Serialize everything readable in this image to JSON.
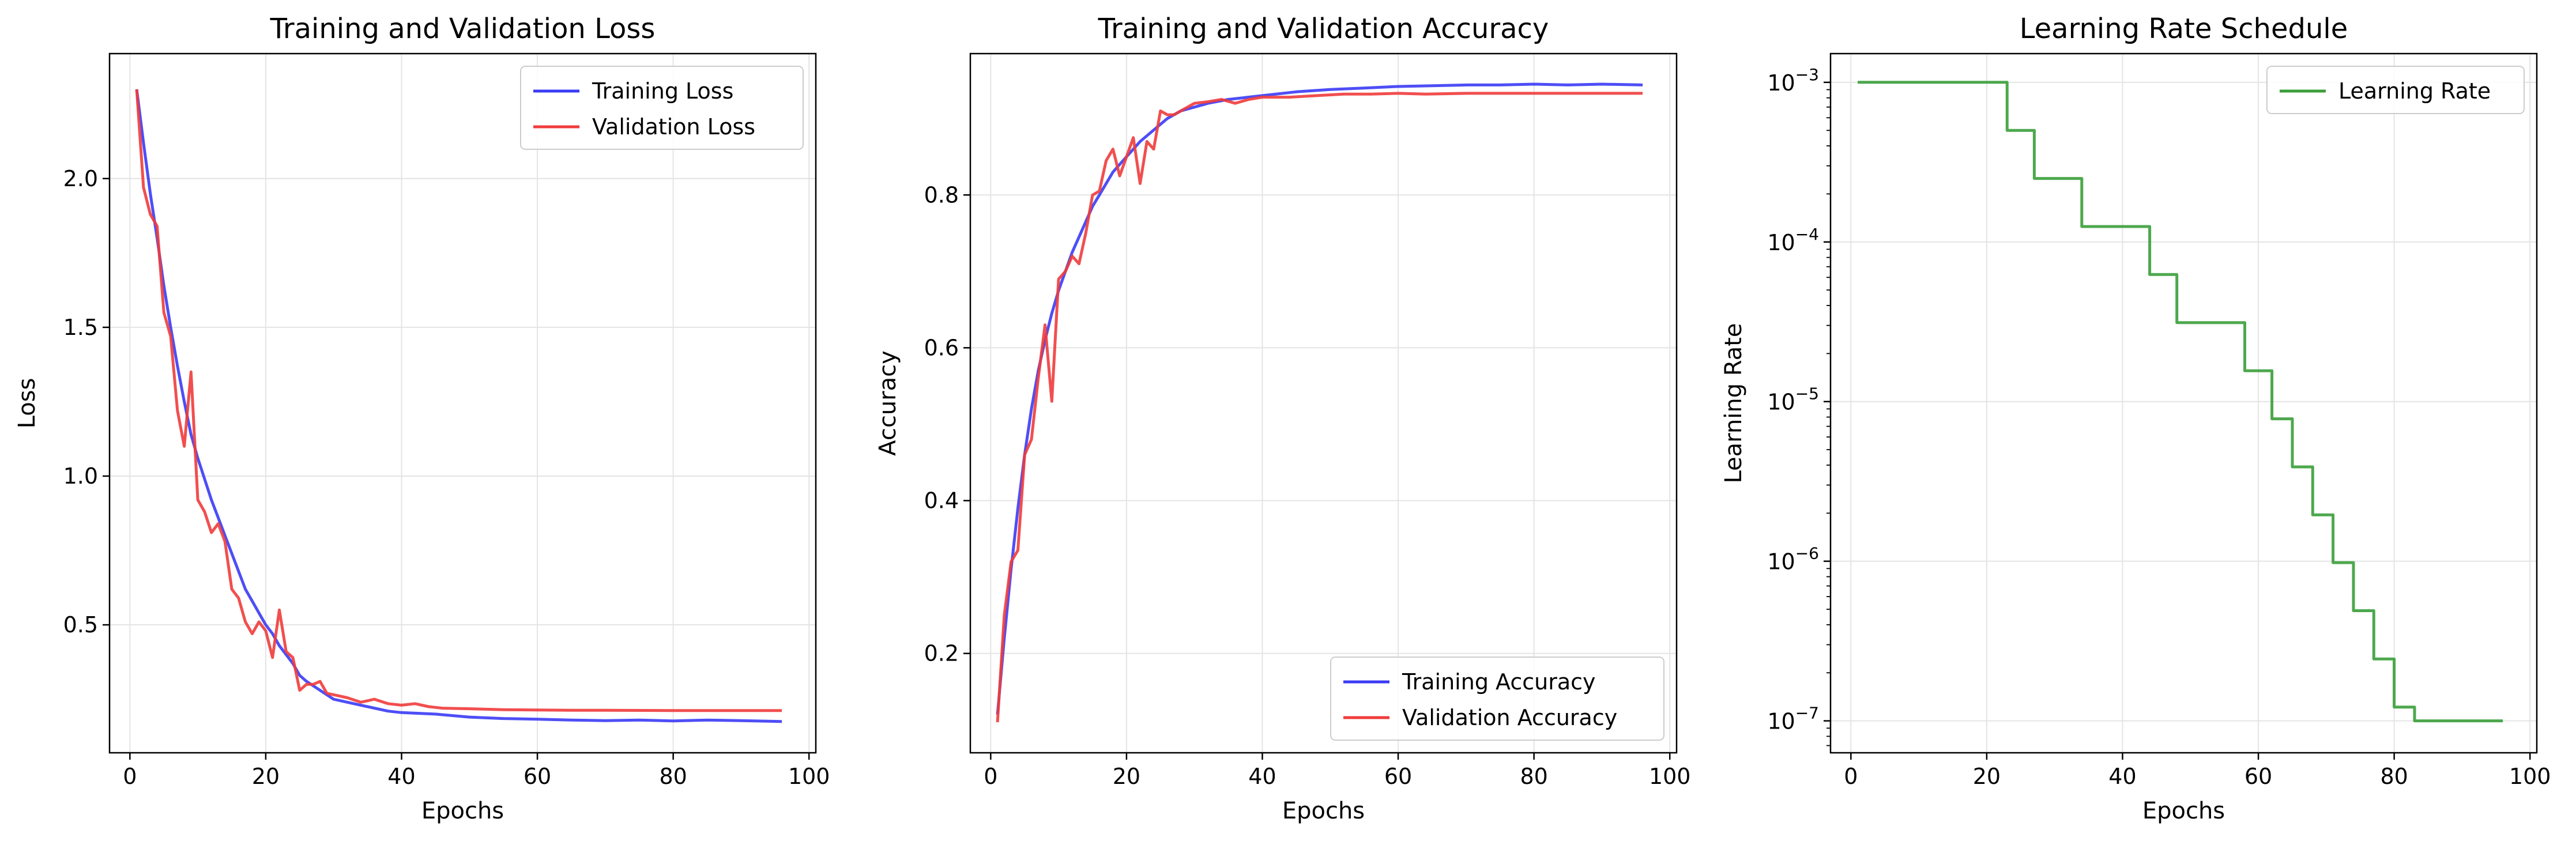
{
  "chart_data": [
    {
      "type": "line",
      "title": "Training and Validation Loss",
      "xlabel": "Epochs",
      "ylabel": "Loss",
      "xlim": [
        -3,
        101
      ],
      "ylim": [
        0.07,
        2.42
      ],
      "xticks": [
        0,
        20,
        40,
        60,
        80,
        100
      ],
      "xtick_labels": [
        "0",
        "20",
        "40",
        "60",
        "80",
        "100"
      ],
      "yticks": [
        0.5,
        1.0,
        1.5,
        2.0
      ],
      "ytick_labels": [
        "0.5",
        "1.0",
        "1.5",
        "2.0"
      ],
      "legend": "top-right",
      "grid": true,
      "series": [
        {
          "name": "Training Loss",
          "color": "#3b3bf5",
          "points": [
            [
              1,
              2.3
            ],
            [
              2,
              2.12
            ],
            [
              3,
              1.95
            ],
            [
              4,
              1.8
            ],
            [
              5,
              1.64
            ],
            [
              6,
              1.5
            ],
            [
              7,
              1.37
            ],
            [
              8,
              1.25
            ],
            [
              9,
              1.14
            ],
            [
              10,
              1.06
            ],
            [
              11,
              0.99
            ],
            [
              12,
              0.92
            ],
            [
              13,
              0.86
            ],
            [
              14,
              0.8
            ],
            [
              15,
              0.74
            ],
            [
              16,
              0.68
            ],
            [
              17,
              0.62
            ],
            [
              18,
              0.58
            ],
            [
              19,
              0.54
            ],
            [
              20,
              0.5
            ],
            [
              21,
              0.47
            ],
            [
              22,
              0.43
            ],
            [
              23,
              0.4
            ],
            [
              24,
              0.37
            ],
            [
              25,
              0.33
            ],
            [
              26,
              0.31
            ],
            [
              28,
              0.28
            ],
            [
              30,
              0.25
            ],
            [
              32,
              0.24
            ],
            [
              35,
              0.225
            ],
            [
              38,
              0.21
            ],
            [
              40,
              0.205
            ],
            [
              45,
              0.2
            ],
            [
              50,
              0.19
            ],
            [
              55,
              0.185
            ],
            [
              60,
              0.183
            ],
            [
              65,
              0.18
            ],
            [
              70,
              0.178
            ],
            [
              75,
              0.18
            ],
            [
              80,
              0.177
            ],
            [
              85,
              0.18
            ],
            [
              90,
              0.178
            ],
            [
              96,
              0.175
            ]
          ]
        },
        {
          "name": "Validation Loss",
          "color": "#f03c3c",
          "points": [
            [
              1,
              2.3
            ],
            [
              2,
              1.97
            ],
            [
              3,
              1.88
            ],
            [
              4,
              1.84
            ],
            [
              5,
              1.55
            ],
            [
              6,
              1.47
            ],
            [
              7,
              1.22
            ],
            [
              8,
              1.1
            ],
            [
              9,
              1.35
            ],
            [
              10,
              0.92
            ],
            [
              11,
              0.88
            ],
            [
              12,
              0.81
            ],
            [
              13,
              0.84
            ],
            [
              14,
              0.78
            ],
            [
              15,
              0.62
            ],
            [
              16,
              0.59
            ],
            [
              17,
              0.51
            ],
            [
              18,
              0.47
            ],
            [
              19,
              0.51
            ],
            [
              20,
              0.48
            ],
            [
              21,
              0.39
            ],
            [
              22,
              0.55
            ],
            [
              23,
              0.41
            ],
            [
              24,
              0.39
            ],
            [
              25,
              0.28
            ],
            [
              26,
              0.3
            ],
            [
              27,
              0.3
            ],
            [
              28,
              0.31
            ],
            [
              29,
              0.27
            ],
            [
              30,
              0.265
            ],
            [
              32,
              0.255
            ],
            [
              34,
              0.24
            ],
            [
              36,
              0.25
            ],
            [
              38,
              0.235
            ],
            [
              40,
              0.23
            ],
            [
              42,
              0.235
            ],
            [
              44,
              0.225
            ],
            [
              46,
              0.22
            ],
            [
              50,
              0.218
            ],
            [
              55,
              0.215
            ],
            [
              60,
              0.214
            ],
            [
              65,
              0.213
            ],
            [
              70,
              0.213
            ],
            [
              80,
              0.212
            ],
            [
              90,
              0.212
            ],
            [
              96,
              0.212
            ]
          ]
        }
      ]
    },
    {
      "type": "line",
      "title": "Training and Validation Accuracy",
      "xlabel": "Epochs",
      "ylabel": "Accuracy",
      "xlim": [
        -3,
        101
      ],
      "ylim": [
        0.07,
        0.985
      ],
      "xticks": [
        0,
        20,
        40,
        60,
        80,
        100
      ],
      "xtick_labels": [
        "0",
        "20",
        "40",
        "60",
        "80",
        "100"
      ],
      "yticks": [
        0.2,
        0.4,
        0.6,
        0.8
      ],
      "ytick_labels": [
        "0.2",
        "0.4",
        "0.6",
        "0.8"
      ],
      "legend": "bottom-right",
      "grid": true,
      "series": [
        {
          "name": "Training Accuracy",
          "color": "#3b3bf5",
          "points": [
            [
              1,
              0.12
            ],
            [
              2,
              0.22
            ],
            [
              3,
              0.31
            ],
            [
              4,
              0.39
            ],
            [
              5,
              0.46
            ],
            [
              6,
              0.52
            ],
            [
              7,
              0.57
            ],
            [
              8,
              0.61
            ],
            [
              9,
              0.645
            ],
            [
              10,
              0.675
            ],
            [
              11,
              0.7
            ],
            [
              12,
              0.725
            ],
            [
              13,
              0.745
            ],
            [
              14,
              0.765
            ],
            [
              15,
              0.785
            ],
            [
              16,
              0.8
            ],
            [
              17,
              0.815
            ],
            [
              18,
              0.83
            ],
            [
              19,
              0.84
            ],
            [
              20,
              0.85
            ],
            [
              22,
              0.87
            ],
            [
              24,
              0.885
            ],
            [
              26,
              0.9
            ],
            [
              28,
              0.91
            ],
            [
              30,
              0.915
            ],
            [
              32,
              0.92
            ],
            [
              35,
              0.925
            ],
            [
              40,
              0.93
            ],
            [
              45,
              0.935
            ],
            [
              50,
              0.938
            ],
            [
              55,
              0.94
            ],
            [
              60,
              0.942
            ],
            [
              65,
              0.943
            ],
            [
              70,
              0.944
            ],
            [
              75,
              0.944
            ],
            [
              80,
              0.945
            ],
            [
              85,
              0.944
            ],
            [
              90,
              0.945
            ],
            [
              96,
              0.944
            ]
          ]
        },
        {
          "name": "Validation Accuracy",
          "color": "#f03c3c",
          "points": [
            [
              1,
              0.11
            ],
            [
              2,
              0.25
            ],
            [
              3,
              0.32
            ],
            [
              4,
              0.335
            ],
            [
              5,
              0.46
            ],
            [
              6,
              0.48
            ],
            [
              7,
              0.56
            ],
            [
              8,
              0.63
            ],
            [
              9,
              0.53
            ],
            [
              10,
              0.69
            ],
            [
              11,
              0.7
            ],
            [
              12,
              0.72
            ],
            [
              13,
              0.71
            ],
            [
              14,
              0.75
            ],
            [
              15,
              0.8
            ],
            [
              16,
              0.805
            ],
            [
              17,
              0.845
            ],
            [
              18,
              0.86
            ],
            [
              19,
              0.825
            ],
            [
              20,
              0.85
            ],
            [
              21,
              0.875
            ],
            [
              22,
              0.815
            ],
            [
              23,
              0.87
            ],
            [
              24,
              0.86
            ],
            [
              25,
              0.91
            ],
            [
              26,
              0.905
            ],
            [
              27,
              0.905
            ],
            [
              28,
              0.91
            ],
            [
              30,
              0.92
            ],
            [
              32,
              0.922
            ],
            [
              34,
              0.925
            ],
            [
              36,
              0.92
            ],
            [
              38,
              0.925
            ],
            [
              40,
              0.928
            ],
            [
              44,
              0.928
            ],
            [
              48,
              0.93
            ],
            [
              52,
              0.932
            ],
            [
              56,
              0.932
            ],
            [
              60,
              0.933
            ],
            [
              64,
              0.932
            ],
            [
              70,
              0.933
            ],
            [
              80,
              0.933
            ],
            [
              90,
              0.933
            ],
            [
              96,
              0.933
            ]
          ]
        }
      ]
    },
    {
      "type": "line",
      "title": "Learning Rate Schedule",
      "xlabel": "Epochs",
      "ylabel": "Learning Rate",
      "xlim": [
        -3,
        101
      ],
      "yscale": "log",
      "ylim_log10": [
        -7.2,
        -2.82
      ],
      "xticks": [
        0,
        20,
        40,
        60,
        80,
        100
      ],
      "xtick_labels": [
        "0",
        "20",
        "40",
        "60",
        "80",
        "100"
      ],
      "yticks_log10": [
        -7,
        -6,
        -5,
        -4,
        -3
      ],
      "ytick_labels": [
        "10",
        "10",
        "10",
        "10",
        "10"
      ],
      "ytick_exponents": [
        "−7",
        "−6",
        "−5",
        "−4",
        "−3"
      ],
      "legend": "top-right",
      "grid": true,
      "series": [
        {
          "name": "Learning Rate",
          "color": "#3a9e3a",
          "points": [
            [
              1,
              0.001
            ],
            [
              23,
              0.001
            ],
            [
              23,
              0.0005
            ],
            [
              27,
              0.0005
            ],
            [
              27,
              0.00025
            ],
            [
              34,
              0.00025
            ],
            [
              34,
              0.000125
            ],
            [
              44,
              0.000125
            ],
            [
              44,
              6.25e-05
            ],
            [
              48,
              6.25e-05
            ],
            [
              48,
              3.125e-05
            ],
            [
              58,
              3.125e-05
            ],
            [
              58,
              1.56e-05
            ],
            [
              62,
              1.56e-05
            ],
            [
              62,
              7.8e-06
            ],
            [
              65,
              7.8e-06
            ],
            [
              65,
              3.9e-06
            ],
            [
              68,
              3.9e-06
            ],
            [
              68,
              1.95e-06
            ],
            [
              71,
              1.95e-06
            ],
            [
              71,
              9.8e-07
            ],
            [
              74,
              9.8e-07
            ],
            [
              74,
              4.9e-07
            ],
            [
              77,
              4.9e-07
            ],
            [
              77,
              2.44e-07
            ],
            [
              80,
              2.44e-07
            ],
            [
              80,
              1.22e-07
            ],
            [
              83,
              1.22e-07
            ],
            [
              83,
              1e-07
            ],
            [
              96,
              1e-07
            ]
          ]
        }
      ]
    }
  ]
}
